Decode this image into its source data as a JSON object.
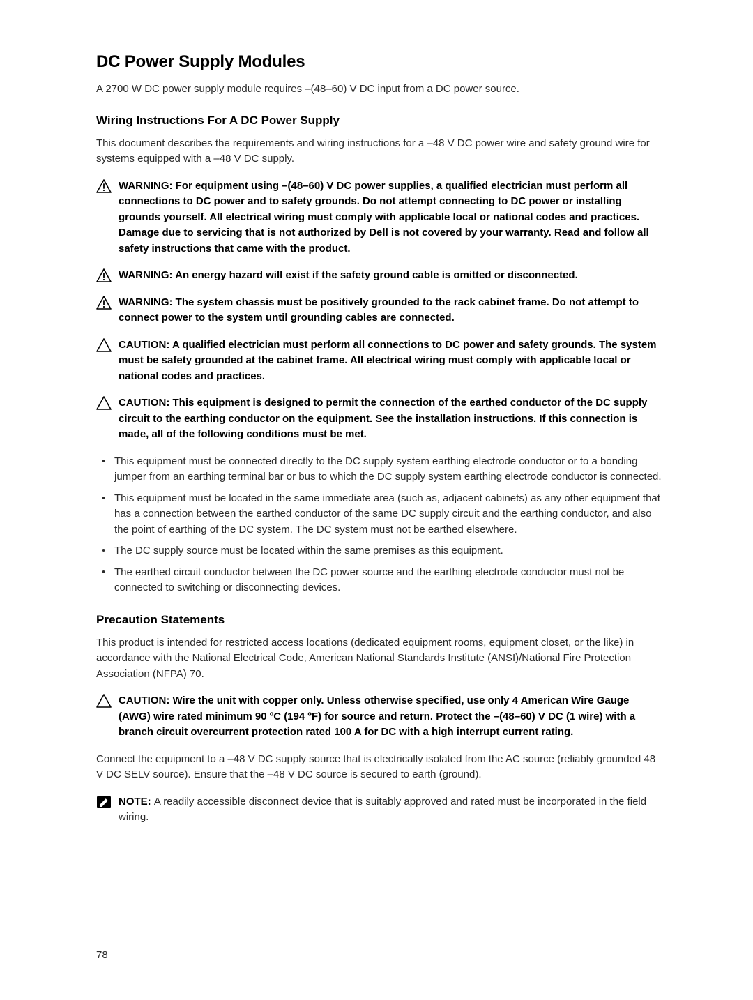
{
  "h1": "DC Power Supply Modules",
  "intro": "A 2700 W DC power supply module requires –(48–60) V DC input from a DC power source.",
  "h2a": "Wiring Instructions For A DC Power Supply",
  "paraA": "This document describes the requirements and wiring instructions for a –48 V DC power wire and safety ground wire for systems equipped with a –48 V DC supply.",
  "alerts": [
    {
      "type": "warning",
      "label": "WARNING: ",
      "body": "For equipment using –(48–60) V DC power supplies, a qualified electrician must perform all connections to DC power and to safety grounds. Do not attempt connecting to DC power or installing grounds yourself. All electrical wiring must comply with applicable local or national codes and practices. Damage due to servicing that is not authorized by Dell is not covered by your warranty. Read and follow all safety instructions that came with the product."
    },
    {
      "type": "warning",
      "label": "WARNING: ",
      "body": "An energy hazard will exist if the safety ground cable is omitted or disconnected."
    },
    {
      "type": "warning",
      "label": "WARNING: ",
      "body": "The system chassis must be positively grounded to the rack cabinet frame. Do not attempt to connect power to the system until grounding cables are connected."
    },
    {
      "type": "caution",
      "label": "CAUTION: ",
      "body": "A qualified electrician must perform all connections to DC power and safety grounds. The system must be safety grounded at the cabinet frame. All electrical wiring must comply with applicable local or national codes and practices."
    },
    {
      "type": "caution",
      "label": "CAUTION: ",
      "body": "This equipment is designed to permit the connection of the earthed conductor of the DC supply circuit to the earthing conductor on the equipment. See the installation instructions. If this connection is made, all of the following conditions must be met."
    }
  ],
  "bulletsA": [
    "This equipment must be connected directly to the DC supply system earthing electrode conductor or to a bonding jumper from an earthing terminal bar or bus to which the DC supply system earthing electrode conductor is connected.",
    "This equipment must be located in the same immediate area (such as, adjacent cabinets) as any other equipment that has a connection between the earthed conductor of the same DC supply circuit and the earthing conductor, and also the point of earthing of the DC system. The DC system must not be earthed elsewhere.",
    "The DC supply source must be located within the same premises as this equipment.",
    "The earthed circuit conductor between the DC power source and the earthing electrode conductor must not be connected to switching or disconnecting devices."
  ],
  "h2b": "Precaution Statements",
  "paraB": "This product is intended for restricted access locations (dedicated equipment rooms, equipment closet, or the like) in accordance with the National Electrical Code, American National Standards Institute (ANSI)/National Fire Protection Association (NFPA) 70.",
  "alertB": {
    "type": "caution",
    "label": "CAUTION: ",
    "body": "Wire the unit with copper only. Unless otherwise specified, use only 4 American Wire Gauge (AWG) wire rated minimum 90 ºC (194 ºF) for source and return. Protect the –(48–60) V DC (1 wire) with a branch circuit overcurrent protection rated 100 A for DC with a high interrupt current rating."
  },
  "paraC": "Connect the equipment to a –48 V DC supply source that is electrically isolated from the AC source (reliably grounded 48 V DC SELV source). Ensure that the –48 V DC source is secured to earth (ground).",
  "note": {
    "label": "NOTE: ",
    "body": "A readily accessible disconnect device that is suitably approved and rated must be incorporated in the field wiring."
  },
  "pagenum": "78",
  "colors": {
    "caution": "#000000",
    "warning_fill": "#000000",
    "note_fill": "#000000"
  }
}
